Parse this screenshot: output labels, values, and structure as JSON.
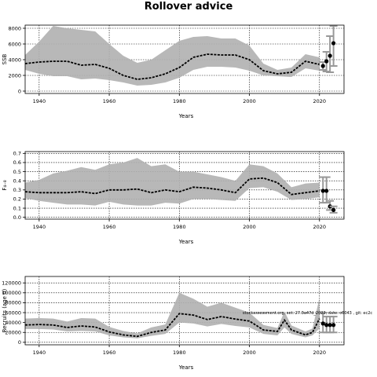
{
  "title": "Rollover advice",
  "annotation": "stockassessment.org, set: 27.3a47d_2022, date: c6043 , git: ec2c",
  "chart_data": [
    {
      "type": "line",
      "ylabel": "SSB",
      "xlabel": "Years",
      "xlim": [
        1936,
        2027
      ],
      "ylim": [
        -300,
        8400
      ],
      "xticks": [
        1940,
        1960,
        1980,
        2000,
        2020
      ],
      "xtick_labels": [
        "1940",
        "1960",
        "1980",
        "2000",
        "2020"
      ],
      "yticks": [
        0,
        2000,
        4000,
        6000,
        8000
      ],
      "ytick_labels": [
        "0",
        "2000",
        "4000",
        "6000",
        "8000"
      ],
      "grid": true,
      "x": [
        1936,
        1940,
        1944,
        1948,
        1952,
        1956,
        1960,
        1964,
        1968,
        1972,
        1976,
        1980,
        1984,
        1988,
        1992,
        1996,
        2000,
        2004,
        2008,
        2012,
        2016,
        2020
      ],
      "series": [
        {
          "values": [
            3500,
            3700,
            3800,
            3800,
            3300,
            3400,
            2900,
            2000,
            1500,
            1700,
            2200,
            3000,
            4300,
            4700,
            4600,
            4600,
            4000,
            2600,
            2200,
            2400,
            3800,
            3400
          ],
          "lower": [
            2700,
            2200,
            1900,
            1900,
            1500,
            1600,
            1400,
            1100,
            700,
            800,
            1100,
            1700,
            2700,
            3100,
            3100,
            3000,
            2600,
            2000,
            1900,
            1800,
            2900,
            2600
          ],
          "upper": [
            4600,
            6300,
            8300,
            8000,
            7800,
            7600,
            6000,
            4500,
            3600,
            4000,
            5200,
            6400,
            6900,
            7000,
            6700,
            6700,
            5800,
            3500,
            2700,
            3000,
            4700,
            4300
          ]
        }
      ],
      "projection": [
        {
          "x": 2021,
          "value": 3200,
          "lower": 2700,
          "upper": 3700
        },
        {
          "x": 2022,
          "value": 3800,
          "lower": 2500,
          "upper": 5000
        },
        {
          "x": 2023,
          "value": 4500,
          "lower": 2400,
          "upper": 7000
        },
        {
          "x": 2024,
          "value": 6100,
          "lower": 3200,
          "upper": 8300
        }
      ]
    },
    {
      "type": "line",
      "ylabel": "F₄₋₈",
      "xlabel": "Years",
      "xlim": [
        1936,
        2027
      ],
      "ylim": [
        -0.02,
        0.72
      ],
      "xticks": [
        1940,
        1960,
        1980,
        2000,
        2020
      ],
      "xtick_labels": [
        "1940",
        "1960",
        "1980",
        "2000",
        "2020"
      ],
      "yticks": [
        0.0,
        0.1,
        0.2,
        0.3,
        0.4,
        0.5,
        0.6,
        0.7
      ],
      "ytick_labels": [
        "0.0",
        "0.1",
        "0.2",
        "0.3",
        "0.4",
        "0.5",
        "0.6",
        "0.7"
      ],
      "grid": true,
      "x": [
        1936,
        1940,
        1944,
        1948,
        1952,
        1956,
        1960,
        1964,
        1968,
        1972,
        1976,
        1980,
        1984,
        1988,
        1992,
        1996,
        2000,
        2004,
        2008,
        2012,
        2016,
        2020
      ],
      "series": [
        {
          "values": [
            0.28,
            0.27,
            0.27,
            0.27,
            0.28,
            0.26,
            0.3,
            0.3,
            0.31,
            0.27,
            0.3,
            0.28,
            0.33,
            0.32,
            0.3,
            0.27,
            0.42,
            0.43,
            0.38,
            0.25,
            0.27,
            0.29
          ],
          "lower": [
            0.21,
            0.18,
            0.16,
            0.14,
            0.14,
            0.13,
            0.17,
            0.14,
            0.13,
            0.13,
            0.16,
            0.15,
            0.2,
            0.2,
            0.19,
            0.18,
            0.32,
            0.33,
            0.28,
            0.19,
            0.2,
            0.22
          ],
          "upper": [
            0.38,
            0.41,
            0.48,
            0.51,
            0.55,
            0.52,
            0.58,
            0.6,
            0.65,
            0.56,
            0.58,
            0.5,
            0.5,
            0.47,
            0.44,
            0.4,
            0.58,
            0.56,
            0.48,
            0.33,
            0.37,
            0.38
          ]
        }
      ],
      "projection": [
        {
          "x": 2021,
          "value": 0.29,
          "lower": 0.16,
          "upper": 0.44
        },
        {
          "x": 2022,
          "value": 0.29,
          "lower": 0.16,
          "upper": 0.44
        },
        {
          "x": 2023,
          "value": 0.12,
          "lower": 0.08,
          "upper": 0.18
        },
        {
          "x": 2024,
          "value": 0.08,
          "lower": 0.05,
          "upper": 0.12
        }
      ]
    },
    {
      "type": "line",
      "ylabel": "Recruits (age 0)",
      "xlabel": "Years",
      "xlim": [
        1936,
        2027
      ],
      "ylim": [
        -5000,
        133000
      ],
      "xticks": [
        1940,
        1960,
        1980,
        2000,
        2020
      ],
      "xtick_labels": [
        "1940",
        "1960",
        "1980",
        "2000",
        "2020"
      ],
      "yticks": [
        0,
        20000,
        40000,
        60000,
        80000,
        100000,
        120000
      ],
      "ytick_labels": [
        "0",
        "20000",
        "40000",
        "60000",
        "80000",
        "100000",
        "120000"
      ],
      "grid": true,
      "x": [
        1936,
        1940,
        1944,
        1948,
        1952,
        1956,
        1960,
        1964,
        1968,
        1972,
        1976,
        1980,
        1984,
        1988,
        1992,
        1996,
        2000,
        2004,
        2008,
        2010,
        2012,
        2016,
        2018,
        2020
      ],
      "series": [
        {
          "values": [
            35000,
            36000,
            35000,
            30000,
            33000,
            31000,
            21000,
            15000,
            12000,
            20000,
            25000,
            58000,
            55000,
            46000,
            52000,
            47000,
            43000,
            25000,
            22000,
            45000,
            25000,
            15000,
            20000,
            48000
          ],
          "lower": [
            27000,
            27000,
            26000,
            22000,
            23000,
            22000,
            14000,
            10000,
            8000,
            13000,
            17000,
            40000,
            38000,
            32000,
            37000,
            33000,
            30000,
            17000,
            14000,
            30000,
            17000,
            10000,
            14000,
            28000
          ],
          "upper": [
            48000,
            49000,
            48000,
            42000,
            49000,
            48000,
            31000,
            23000,
            18000,
            30000,
            36000,
            100000,
            88000,
            72000,
            80000,
            70000,
            60000,
            35000,
            29000,
            62000,
            34000,
            22000,
            28000,
            90000
          ]
        }
      ],
      "projection": [
        {
          "x": 2021,
          "value": 38000,
          "lower": 20000,
          "upper": 60000
        },
        {
          "x": 2022,
          "value": 35000,
          "lower": 20000,
          "upper": 52000
        },
        {
          "x": 2023,
          "value": 35000,
          "lower": 20000,
          "upper": 52000
        },
        {
          "x": 2024,
          "value": 35000,
          "lower": 20000,
          "upper": 52000
        }
      ]
    }
  ]
}
